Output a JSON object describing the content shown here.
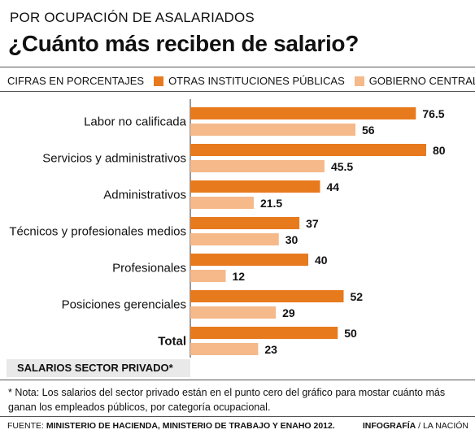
{
  "header": {
    "kicker": "POR OCUPACIÓN DE ASALARIADOS",
    "title": "¿Cuánto más reciben de salario?"
  },
  "legend": {
    "units_label": "CIFRAS EN PORCENTAJES",
    "series1_label": "OTRAS INSTITUCIONES PÚBLICAS",
    "series2_label": "GOBIERNO CENTRAL"
  },
  "colors": {
    "series1": "#E87A1E",
    "series2": "#F5B98A"
  },
  "chart_data": {
    "type": "bar",
    "orientation": "horizontal",
    "categories": [
      "Labor no calificada",
      "Servicios y administrativos",
      "Administrativos",
      "Técnicos y profesionales medios",
      "Profesionales",
      "Posiciones gerenciales",
      "Total"
    ],
    "series": [
      {
        "name": "OTRAS INSTITUCIONES PÚBLICAS",
        "values": [
          76.5,
          80,
          44,
          37,
          40,
          52,
          50
        ]
      },
      {
        "name": "GOBIERNO CENTRAL",
        "values": [
          56,
          45.5,
          21.5,
          30,
          12,
          29,
          23
        ]
      }
    ],
    "bold_categories": [
      "Total"
    ],
    "xlim": [
      0,
      80
    ]
  },
  "baseline_label": "SALARIOS SECTOR PRIVADO*",
  "note": "* Nota: Los  salarios del sector privado están en el punto cero del gráfico para mostar cuánto más ganan los empleados públicos, por categoría ocupacional.",
  "footer": {
    "source_prefix": "FUENTE: ",
    "source": "MINISTERIO DE HACIENDA, MINISTERIO DE TRABAJO Y ENAHO 2012.",
    "credit_bold": "INFOGRAFÍA",
    "credit_rest": " / LA NACIÓN"
  }
}
